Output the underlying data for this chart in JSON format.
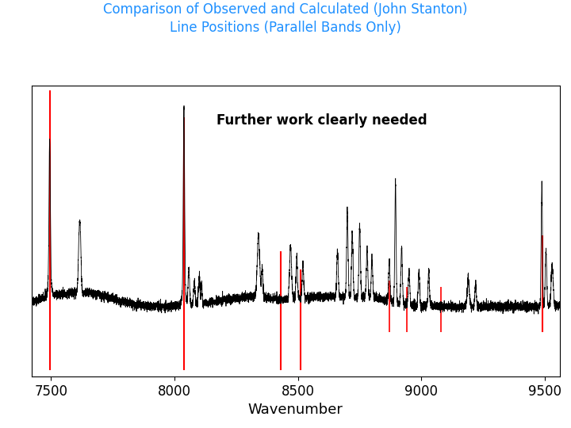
{
  "title_line1": "Comparison of Observed and Calculated (John Stanton)",
  "title_line2": "Line Positions (Parallel Bands Only)",
  "title_color": "#1E90FF",
  "xlabel": "Wavenumber",
  "annotation": "Further work clearly needed",
  "annotation_fontsize": 12,
  "annotation_fontweight": "bold",
  "xmin": 7420,
  "xmax": 9560,
  "xticks": [
    7500,
    8000,
    8500,
    9000,
    9500
  ],
  "background_color": "#ffffff",
  "plot_bg_color": "#ffffff",
  "spectrum_color": "#000000",
  "calc_line_color": "#FF0000",
  "noise_seed": 42,
  "red_lines": [
    {
      "x": 7494,
      "ytop": 1.0,
      "ybot": -0.25,
      "lw": 1.5
    },
    {
      "x": 8038,
      "ytop": 0.88,
      "ybot": -0.25,
      "lw": 1.5
    },
    {
      "x": 8430,
      "ytop": 0.28,
      "ybot": -0.25,
      "lw": 1.5
    },
    {
      "x": 8510,
      "ytop": 0.2,
      "ybot": -0.25,
      "lw": 1.5
    },
    {
      "x": 8870,
      "ytop": 0.15,
      "ybot": -0.08,
      "lw": 1.2
    },
    {
      "x": 8940,
      "ytop": 0.12,
      "ybot": -0.08,
      "lw": 1.2
    },
    {
      "x": 9080,
      "ytop": 0.12,
      "ybot": -0.08,
      "lw": 1.2
    },
    {
      "x": 9490,
      "ytop": 0.35,
      "ybot": -0.08,
      "lw": 1.5
    }
  ]
}
